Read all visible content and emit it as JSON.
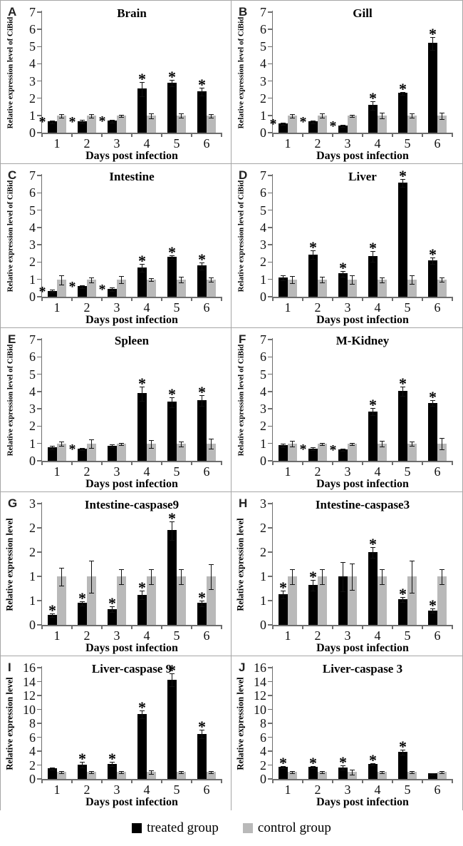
{
  "legend": {
    "treated_label": "treated group",
    "control_label": "control group",
    "treated_color": "#000000",
    "control_color": "#b9b9b9"
  },
  "annotations": {
    "star": "*"
  },
  "chart_data": [
    {
      "panel": "A",
      "type": "bar",
      "title": "Brain",
      "xlabel": "Days post infection",
      "ylabel": "Relative expression level of CiBid",
      "categories": [
        "1",
        "2",
        "3",
        "4",
        "5",
        "6"
      ],
      "ylim": [
        0,
        7
      ],
      "ytick_values": [
        0,
        1,
        2,
        3,
        4,
        5,
        6,
        7
      ],
      "ytick_labels": [
        "0",
        "1",
        "2",
        "3",
        "4",
        "5",
        "6",
        "7"
      ],
      "series": [
        {
          "name": "treated group",
          "color": "#000000",
          "values": [
            0.65,
            0.65,
            0.7,
            2.55,
            2.9,
            2.4
          ],
          "errors": [
            0.05,
            0.08,
            0.06,
            0.4,
            0.15,
            0.2
          ]
        },
        {
          "name": "control group",
          "color": "#b9b9b9",
          "values": [
            1,
            1,
            1,
            1,
            1,
            1
          ],
          "errors": [
            0.07,
            0.08,
            0.04,
            0.12,
            0.1,
            0.08
          ]
        }
      ],
      "significance": [
        "left",
        "left",
        "left",
        "above",
        "above",
        "above"
      ]
    },
    {
      "panel": "B",
      "type": "bar",
      "title": "Gill",
      "xlabel": "Days post infection",
      "ylabel": "Relative expression level of CiBid",
      "categories": [
        "1",
        "2",
        "3",
        "4",
        "5",
        "6"
      ],
      "ylim": [
        0,
        7
      ],
      "ytick_values": [
        0,
        1,
        2,
        3,
        4,
        5,
        6,
        7
      ],
      "ytick_labels": [
        "0",
        "1",
        "2",
        "3",
        "4",
        "5",
        "6",
        "7"
      ],
      "series": [
        {
          "name": "treated group",
          "color": "#000000",
          "values": [
            0.55,
            0.65,
            0.4,
            1.6,
            2.3,
            5.2
          ],
          "errors": [
            0.05,
            0.05,
            0.04,
            0.22,
            0.07,
            0.35
          ]
        },
        {
          "name": "control group",
          "color": "#b9b9b9",
          "values": [
            1,
            1,
            1,
            1,
            1,
            1
          ],
          "errors": [
            0.08,
            0.1,
            0.04,
            0.15,
            0.1,
            0.18
          ]
        }
      ],
      "significance": [
        "left",
        "left",
        "left",
        "above",
        "above",
        "above"
      ]
    },
    {
      "panel": "C",
      "type": "bar",
      "title": "Intestine",
      "xlabel": "Days post infection",
      "ylabel": "Relative expression level of CiBid",
      "categories": [
        "1",
        "2",
        "3",
        "4",
        "5",
        "6"
      ],
      "ylim": [
        0,
        7
      ],
      "ytick_values": [
        0,
        1,
        2,
        3,
        4,
        5,
        6,
        7
      ],
      "ytick_labels": [
        "0",
        "1",
        "2",
        "3",
        "4",
        "5",
        "6",
        "7"
      ],
      "series": [
        {
          "name": "treated group",
          "color": "#000000",
          "values": [
            0.35,
            0.6,
            0.45,
            1.7,
            2.3,
            1.8
          ],
          "errors": [
            0.06,
            0.07,
            0.1,
            0.2,
            0.08,
            0.18
          ]
        },
        {
          "name": "control group",
          "color": "#b9b9b9",
          "values": [
            1,
            1,
            1,
            1,
            1,
            1
          ],
          "errors": [
            0.25,
            0.12,
            0.18,
            0.07,
            0.15,
            0.1
          ]
        }
      ],
      "significance": [
        "left",
        "left",
        "left",
        "above",
        "above",
        "above"
      ]
    },
    {
      "panel": "D",
      "type": "bar",
      "title": "Liver",
      "xlabel": "Days post infection",
      "ylabel": "Relative expression level of CiBid",
      "categories": [
        "1",
        "2",
        "3",
        "4",
        "5",
        "6"
      ],
      "ylim": [
        0,
        7
      ],
      "ytick_values": [
        0,
        1,
        2,
        3,
        4,
        5,
        6,
        7
      ],
      "ytick_labels": [
        "0",
        "1",
        "2",
        "3",
        "4",
        "5",
        "6",
        "7"
      ],
      "series": [
        {
          "name": "treated group",
          "color": "#000000",
          "values": [
            1.1,
            2.45,
            1.35,
            2.35,
            6.6,
            2.1
          ],
          "errors": [
            0.12,
            0.22,
            0.15,
            0.3,
            0.2,
            0.18
          ]
        },
        {
          "name": "control group",
          "color": "#b9b9b9",
          "values": [
            1,
            1,
            1,
            1,
            1,
            1
          ],
          "errors": [
            0.18,
            0.15,
            0.22,
            0.12,
            0.22,
            0.1
          ]
        }
      ],
      "significance": [
        null,
        "above",
        "above",
        "above",
        "above",
        "above"
      ]
    },
    {
      "panel": "E",
      "type": "bar",
      "title": "Spleen",
      "xlabel": "Days post infection",
      "ylabel": "Relative expression level of CiBid",
      "categories": [
        "1",
        "2",
        "3",
        "4",
        "5",
        "6"
      ],
      "ylim": [
        0,
        7
      ],
      "ytick_values": [
        0,
        1,
        2,
        3,
        4,
        5,
        6,
        7
      ],
      "ytick_labels": [
        "0",
        "1",
        "2",
        "3",
        "4",
        "5",
        "6",
        "7"
      ],
      "series": [
        {
          "name": "treated group",
          "color": "#000000",
          "values": [
            0.78,
            0.7,
            0.87,
            3.9,
            3.4,
            3.5
          ],
          "errors": [
            0.1,
            0.06,
            0.06,
            0.38,
            0.28,
            0.3
          ]
        },
        {
          "name": "control group",
          "color": "#b9b9b9",
          "values": [
            1,
            1,
            1,
            1,
            1,
            1
          ],
          "errors": [
            0.1,
            0.22,
            0.05,
            0.2,
            0.12,
            0.27
          ]
        }
      ],
      "significance": [
        null,
        "left",
        null,
        "above",
        "above",
        "above"
      ]
    },
    {
      "panel": "F",
      "type": "bar",
      "title": "M-Kidney",
      "xlabel": "Days post infection",
      "ylabel": "Relative expression  level of CiBid",
      "categories": [
        "1",
        "2",
        "3",
        "4",
        "5",
        "6"
      ],
      "ylim": [
        0,
        7
      ],
      "ytick_values": [
        0,
        1,
        2,
        3,
        4,
        5,
        6,
        7
      ],
      "ytick_labels": [
        "0",
        "1",
        "2",
        "3",
        "4",
        "5",
        "6",
        "7"
      ],
      "series": [
        {
          "name": "treated group",
          "color": "#000000",
          "values": [
            0.9,
            0.72,
            0.65,
            2.85,
            4.05,
            3.35
          ],
          "errors": [
            0.08,
            0.05,
            0.04,
            0.18,
            0.25,
            0.15
          ]
        },
        {
          "name": "control group",
          "color": "#b9b9b9",
          "values": [
            1,
            1,
            1,
            1,
            1,
            1
          ],
          "errors": [
            0.15,
            0.04,
            0.05,
            0.15,
            0.1,
            0.3
          ]
        }
      ],
      "significance": [
        null,
        "left",
        "left",
        "above",
        "above",
        "above"
      ]
    },
    {
      "panel": "G",
      "type": "bar",
      "title": "Intestine-caspase9",
      "xlabel": "Days post infection",
      "ylabel": "Relative expression level",
      "categories": [
        "1",
        "2",
        "3",
        "4",
        "5",
        "6"
      ],
      "ylim": [
        0,
        2.5
      ],
      "ytick_values": [
        0,
        0.5,
        1,
        1.5,
        2,
        2.5
      ],
      "ytick_labels": [
        "0",
        "1",
        "1",
        "2",
        "2",
        "3"
      ],
      "series": [
        {
          "name": "treated group",
          "color": "#000000",
          "values": [
            0.2,
            0.45,
            0.33,
            0.62,
            1.95,
            0.45
          ],
          "errors": [
            0.03,
            0.04,
            0.05,
            0.08,
            0.18,
            0.05
          ]
        },
        {
          "name": "control group",
          "color": "#b9b9b9",
          "values": [
            1,
            1,
            1,
            1,
            1,
            1
          ],
          "errors": [
            0.17,
            0.33,
            0.15,
            0.15,
            0.15,
            0.25
          ]
        }
      ],
      "significance": [
        "above",
        "above",
        "above",
        "above",
        "above",
        "above"
      ]
    },
    {
      "panel": "H",
      "type": "bar",
      "title": "Intestine-caspase3",
      "xlabel": "Days post infection",
      "ylabel": "Relative expression level",
      "categories": [
        "1",
        "2",
        "3",
        "4",
        "5",
        "6"
      ],
      "ylim": [
        0,
        2.5
      ],
      "ytick_values": [
        0,
        0.5,
        1,
        1.5,
        2,
        2.5
      ],
      "ytick_labels": [
        "0",
        "1",
        "1",
        "2",
        "2",
        "3"
      ],
      "series": [
        {
          "name": "treated group",
          "color": "#000000",
          "values": [
            0.63,
            0.82,
            1.0,
            1.5,
            0.53,
            0.3
          ],
          "errors": [
            0.07,
            0.1,
            0.3,
            0.1,
            0.05,
            0.04
          ]
        },
        {
          "name": "control group",
          "color": "#b9b9b9",
          "values": [
            1,
            1,
            1,
            1,
            1,
            1
          ],
          "errors": [
            0.15,
            0.15,
            0.27,
            0.15,
            0.33,
            0.15
          ]
        }
      ],
      "significance": [
        "above",
        "above",
        null,
        "above",
        "above",
        "above"
      ]
    },
    {
      "panel": "I",
      "type": "bar",
      "title": "Liver-caspase 9",
      "xlabel": "Days post infection",
      "ylabel": "Relative expression level",
      "categories": [
        "1",
        "2",
        "3",
        "4",
        "5",
        "6"
      ],
      "ylim": [
        0,
        16
      ],
      "ytick_values": [
        0,
        2,
        4,
        6,
        8,
        10,
        12,
        14,
        16
      ],
      "ytick_labels": [
        "0",
        "2",
        "4",
        "6",
        "8",
        "10",
        "12",
        "14",
        "16"
      ],
      "series": [
        {
          "name": "treated group",
          "color": "#000000",
          "values": [
            1.5,
            2.1,
            2.2,
            9.3,
            14.3,
            6.5
          ],
          "errors": [
            0.1,
            0.4,
            0.25,
            0.5,
            0.9,
            0.6
          ]
        },
        {
          "name": "control group",
          "color": "#b9b9b9",
          "values": [
            1,
            1,
            1,
            1,
            1,
            1
          ],
          "errors": [
            0.1,
            0.1,
            0.12,
            0.2,
            0.1,
            0.12
          ]
        }
      ],
      "significance": [
        null,
        "above",
        "above",
        "above",
        "above",
        "above"
      ]
    },
    {
      "panel": "J",
      "type": "bar",
      "title": "Liver-caspase 3",
      "xlabel": "Days post infection",
      "ylabel": "Relative expression level",
      "categories": [
        "1",
        "2",
        "3",
        "4",
        "5",
        "6"
      ],
      "ylim": [
        0,
        16
      ],
      "ytick_values": [
        0,
        2,
        4,
        6,
        8,
        10,
        12,
        14,
        16
      ],
      "ytick_labels": [
        "0",
        "2",
        "4",
        "6",
        "8",
        "10",
        "12",
        "14",
        "16"
      ],
      "series": [
        {
          "name": "treated group",
          "color": "#000000",
          "values": [
            1.7,
            1.75,
            1.65,
            2.2,
            3.9,
            0.8
          ],
          "errors": [
            0.1,
            0.1,
            0.25,
            0.1,
            0.35,
            0.05
          ]
        },
        {
          "name": "control group",
          "color": "#b9b9b9",
          "values": [
            1,
            1,
            1,
            1,
            1,
            1
          ],
          "errors": [
            0.1,
            0.1,
            0.3,
            0.1,
            0.12,
            0.1
          ]
        }
      ],
      "significance": [
        "above",
        "above",
        "above",
        "above",
        "above",
        null
      ]
    }
  ]
}
